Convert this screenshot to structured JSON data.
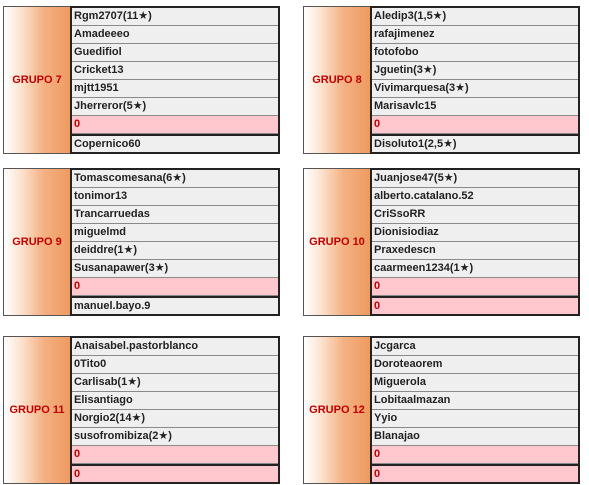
{
  "groups": [
    {
      "label": "GRUPO 7",
      "rows": [
        "Rgm2707(11★)",
        "Amadeeeo",
        "Guedifiol",
        "Cricket13",
        "mjtt1951",
        "Jherreror(5★)",
        "0",
        "Copernico60"
      ]
    },
    {
      "label": "GRUPO 8",
      "rows": [
        "Aledip3(1,5★)",
        "rafajimenez",
        "fotofobo",
        "Jguetin(3★)",
        "Vivimarquesa(3★)",
        "Marisavlc15",
        "0",
        "Disoluto1(2,5★)"
      ]
    },
    {
      "label": "GRUPO 9",
      "rows": [
        "Tomascomesana(6★)",
        "tonimor13",
        "Trancarruedas",
        "miguelmd",
        "deiddre(1★)",
        "Susanapawer(3★)",
        "0",
        "manuel.bayo.9"
      ]
    },
    {
      "label": "GRUPO 10",
      "rows": [
        "Juanjose47(5★)",
        "alberto.catalano.52",
        "CriSsoRR",
        "Dionisiodiaz",
        "Praxedescn",
        "caarmeen1234(1★)",
        "0",
        "0"
      ]
    },
    {
      "label": "GRUPO 11",
      "rows": [
        "Anaisabel.pastorblanco",
        "0Tito0",
        "Carlisab(1★)",
        "Elisantiago",
        "Norgio2(14★)",
        "susofromibiza(2★)",
        "0",
        "0"
      ]
    },
    {
      "label": "GRUPO 12",
      "rows": [
        "Jcgarca",
        "Doroteaorem",
        "Miguerola",
        "Lobitaalmazan",
        "Yyio",
        "Blanajao",
        "0",
        "0"
      ]
    }
  ]
}
